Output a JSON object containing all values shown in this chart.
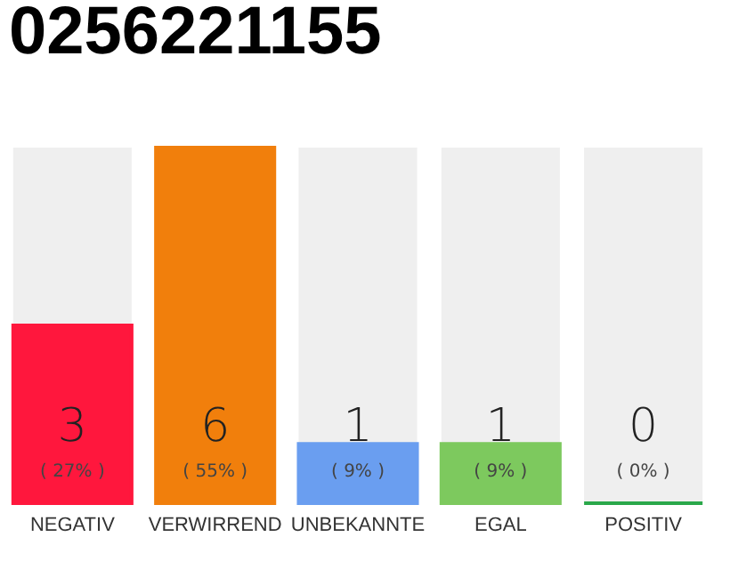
{
  "chart_data": {
    "type": "bar",
    "title": "0256221155",
    "categories": [
      "NEGATIV",
      "VERWIRREND",
      "UNBEKANNTE",
      "EGAL",
      "POSITIV"
    ],
    "values": [
      3,
      6,
      1,
      1,
      0
    ],
    "colors": [
      "#ff173d",
      "#f17f0c",
      "#6a9ef0",
      "#7dc95e",
      "#2aa84a"
    ],
    "ylim": [
      0,
      6
    ],
    "tick_labels": "x",
    "grid": false,
    "data_labels": true,
    "annotations": [
      "( 27% )",
      "( 55% )",
      "( 9% )",
      "( 9% )",
      "( 0% )"
    ]
  }
}
